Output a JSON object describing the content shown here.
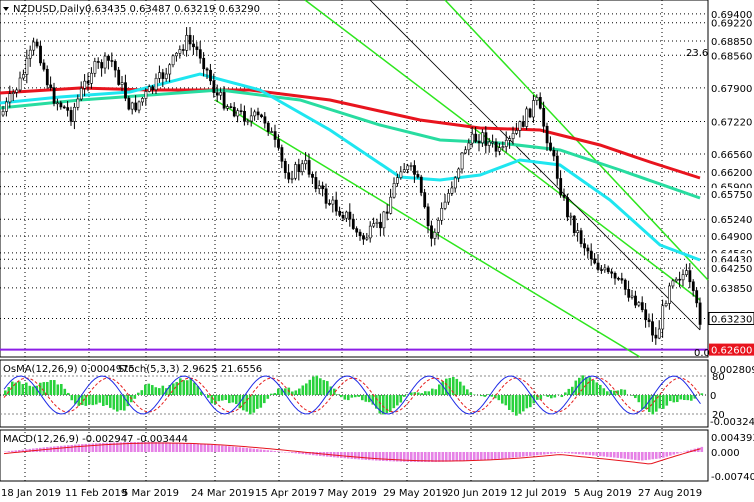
{
  "chart_data": {
    "type": "candlestick",
    "header": {
      "symbol": "NZDUSD,Daily",
      "ohlc": "0.63435 0.63487 0.63219 0.63290"
    },
    "price_axis": {
      "range": [
        0.6245,
        0.6968
      ],
      "labels": [
        "0.69400",
        "0.69220",
        "0.68850",
        "0.68560",
        "0.67900",
        "0.67220",
        "0.66560",
        "0.66200",
        "0.65900",
        "0.65750",
        "0.65240",
        "0.64900",
        "0.64560",
        "0.64430",
        "0.64250",
        "0.63850",
        "0.63230",
        "0.62600"
      ],
      "highlighted": [
        "0.69400",
        "0.68850",
        "0.67900",
        "0.66200",
        "0.65750",
        "0.64900",
        "0.64430",
        "0.64250",
        "0.63850",
        "0.63230",
        "0.62600"
      ],
      "current_price": "0.63230",
      "support_box": "0.62600",
      "mark_236": "23.6",
      "mark_00": "0.0"
    },
    "date_labels": [
      "18 Jan 2019",
      "11 Feb 2019",
      "5 Mar 2019",
      "24 Mar 2019",
      "15 Apr 2019",
      "7 May 2019",
      "29 May 2019",
      "20 Jun 2019",
      "12 Jul 2019",
      "5 Aug 2019",
      "27 Aug 2019"
    ],
    "indicators": {
      "osma": {
        "header": "OsMA(12,26,9) 0.0004975",
        "levels": [
          "0.00280934",
          "0",
          "-0.00324223"
        ]
      },
      "stoch": {
        "header": "Stoch(5,3,3) 2.9625 21.6556",
        "levels": [
          "80",
          "20"
        ]
      },
      "macd": {
        "header": "MACD(12,26,9) -0.002947 -0.003444",
        "levels": [
          "0.004393",
          "0.000",
          "-0.007404"
        ]
      }
    },
    "colors": {
      "bull": "#ffffff",
      "bear": "#000000",
      "ma_red": "#e8141e",
      "ma_cyan": "#1ee6f0",
      "ma_green": "#28dca0",
      "channel_green": "#2ee61e",
      "osma_bar": "#28d23c",
      "stoch_main": "#1e2ae6",
      "stoch_signal": "#e61e1e",
      "macd_bar": "#e682e6",
      "macd_signal": "#e6141e",
      "purple_line": "#8c1ee6",
      "price_box": "#000000"
    }
  }
}
